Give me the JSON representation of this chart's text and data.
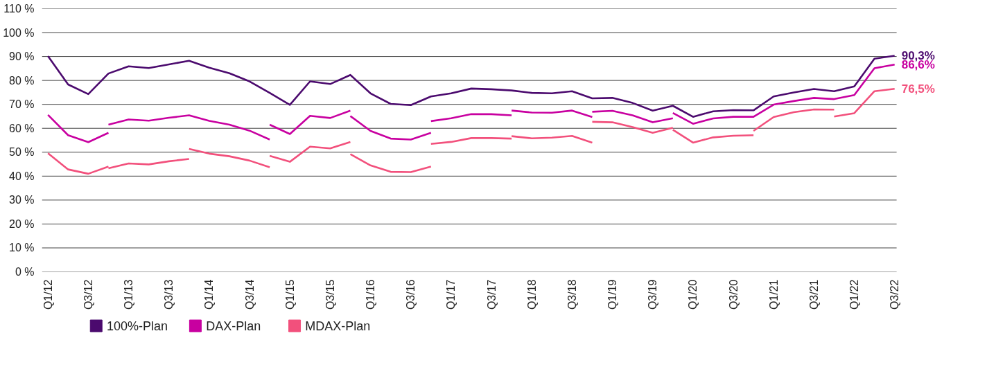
{
  "chart_data": {
    "type": "line",
    "categories": [
      "Q1/12",
      null,
      "Q3/12",
      null,
      "Q1/13",
      null,
      "Q3/13",
      null,
      "Q1/14",
      null,
      "Q3/14",
      null,
      "Q1/15",
      null,
      "Q3/15",
      null,
      "Q1/16",
      null,
      "Q3/16",
      null,
      "Q1/17",
      null,
      "Q3/17",
      null,
      "Q1/18",
      null,
      "Q3/18",
      null,
      "Q1/19",
      null,
      "Q3/19",
      null,
      "Q1/20",
      null,
      "Q3/20",
      null,
      "Q1/21",
      null,
      "Q3/21",
      null,
      "Q1/22",
      null,
      "Q3/22"
    ],
    "ylim": [
      0,
      110
    ],
    "yticks": [
      {
        "value": 0,
        "label": "0 %"
      },
      {
        "value": 10,
        "label": "10 %"
      },
      {
        "value": 20,
        "label": "20 %"
      },
      {
        "value": 30,
        "label": "30 %"
      },
      {
        "value": 40,
        "label": "40 %"
      },
      {
        "value": 50,
        "label": "50 %"
      },
      {
        "value": 60,
        "label": "60 %"
      },
      {
        "value": 70,
        "label": "70 %"
      },
      {
        "value": 80,
        "label": "80 %"
      },
      {
        "value": 90,
        "label": "90 %"
      },
      {
        "value": 100,
        "label": "100 %"
      },
      {
        "value": 110,
        "label": "110 %"
      }
    ],
    "grid": "y",
    "legend": "bottom left",
    "marker": "none",
    "line_style": "solid",
    "series": [
      {
        "name": "100%-Plan",
        "color": "#4b0a6e",
        "values": [
          90.2,
          78.3,
          74.3,
          82.9,
          85.9,
          85.2,
          86.7,
          88.2,
          85.3,
          83.0,
          79.6,
          74.8,
          69.8,
          79.6,
          78.5,
          82.3,
          74.6,
          70.2,
          69.7,
          73.3,
          74.6,
          76.6,
          76.3,
          75.8,
          74.8,
          74.6,
          75.5,
          72.5,
          72.7,
          70.6,
          67.4,
          69.4,
          64.8,
          67.1,
          67.6,
          67.5,
          73.3,
          75.0,
          76.4,
          75.5,
          77.5,
          89.1,
          90.3
        ],
        "value_labels": [
          null,
          null,
          null,
          null,
          null,
          null,
          null,
          null,
          null,
          null,
          null,
          null,
          null,
          null,
          null,
          null,
          null,
          null,
          null,
          null,
          null,
          null,
          null,
          null,
          null,
          null,
          null,
          null,
          null,
          null,
          null,
          null,
          null,
          null,
          null,
          null,
          null,
          null,
          null,
          null,
          null,
          null,
          "90,3%"
        ]
      },
      {
        "name": "DAX-Plan",
        "color": "#c800a0",
        "values": [
          65.6,
          57.1,
          54.2,
          58.1,
          null,
          null,
          null,
          null,
          null,
          null,
          null,
          null,
          null,
          null,
          null,
          null,
          null,
          null,
          null,
          null,
          null,
          null,
          null,
          null,
          null,
          null,
          null,
          null,
          null,
          null,
          null,
          null,
          null,
          null,
          null,
          null,
          null,
          null,
          null,
          null,
          null,
          null,
          null
        ]
      },
      {
        "color": "#c800a0",
        "values": [
          null,
          null,
          null,
          61.5,
          63.7,
          63.2,
          64.4,
          65.4,
          63.1,
          61.5,
          59.0,
          55.3,
          null,
          null,
          null,
          null,
          null,
          null,
          null,
          null,
          null,
          null,
          null,
          null,
          null,
          null,
          null,
          null,
          null,
          null,
          null,
          null,
          null,
          null,
          null,
          null,
          null,
          null,
          null,
          null,
          null,
          null,
          null
        ]
      },
      {
        "color": "#c800a0",
        "values": [
          null,
          null,
          null,
          null,
          null,
          null,
          null,
          null,
          null,
          null,
          null,
          61.5,
          57.6,
          65.2,
          64.3,
          67.4,
          null,
          null,
          null,
          null,
          null,
          null,
          null,
          null,
          null,
          null,
          null,
          null,
          null,
          null,
          null,
          null,
          null,
          null,
          null,
          null,
          null,
          null,
          null,
          null,
          null,
          null,
          null
        ]
      },
      {
        "color": "#c800a0",
        "values": [
          null,
          null,
          null,
          null,
          null,
          null,
          null,
          null,
          null,
          null,
          null,
          null,
          null,
          null,
          null,
          65.1,
          58.9,
          55.7,
          55.3,
          58.1,
          null,
          null,
          null,
          null,
          null,
          null,
          null,
          null,
          null,
          null,
          null,
          null,
          null,
          null,
          null,
          null,
          null,
          null,
          null,
          null,
          null,
          null,
          null
        ]
      },
      {
        "color": "#c800a0",
        "values": [
          null,
          null,
          null,
          null,
          null,
          null,
          null,
          null,
          null,
          null,
          null,
          null,
          null,
          null,
          null,
          null,
          null,
          null,
          null,
          63.0,
          64.2,
          65.9,
          65.9,
          65.4,
          null,
          null,
          null,
          null,
          null,
          null,
          null,
          null,
          null,
          null,
          null,
          null,
          null,
          null,
          null,
          null,
          null,
          null,
          null
        ]
      },
      {
        "color": "#c800a0",
        "values": [
          null,
          null,
          null,
          null,
          null,
          null,
          null,
          null,
          null,
          null,
          null,
          null,
          null,
          null,
          null,
          null,
          null,
          null,
          null,
          null,
          null,
          null,
          null,
          67.4,
          66.6,
          66.5,
          67.4,
          64.7,
          null,
          null,
          null,
          null,
          null,
          null,
          null,
          null,
          null,
          null,
          null,
          null,
          null,
          null,
          null
        ]
      },
      {
        "color": "#c800a0",
        "values": [
          null,
          null,
          null,
          null,
          null,
          null,
          null,
          null,
          null,
          null,
          null,
          null,
          null,
          null,
          null,
          null,
          null,
          null,
          null,
          null,
          null,
          null,
          null,
          null,
          null,
          null,
          null,
          66.9,
          67.3,
          65.4,
          62.5,
          64.2,
          null,
          null,
          null,
          null,
          null,
          null,
          null,
          null,
          null,
          null,
          null
        ]
      },
      {
        "color": "#c800a0",
        "values": [
          null,
          null,
          null,
          null,
          null,
          null,
          null,
          null,
          null,
          null,
          null,
          null,
          null,
          null,
          null,
          null,
          null,
          null,
          null,
          null,
          null,
          null,
          null,
          null,
          null,
          null,
          null,
          null,
          null,
          null,
          null,
          66.4,
          61.9,
          64.1,
          64.8,
          64.8,
          69.9,
          71.4,
          72.7,
          72.2,
          73.9,
          85.1,
          86.6
        ],
        "value_labels": [
          null,
          null,
          null,
          null,
          null,
          null,
          null,
          null,
          null,
          null,
          null,
          null,
          null,
          null,
          null,
          null,
          null,
          null,
          null,
          null,
          null,
          null,
          null,
          null,
          null,
          null,
          null,
          null,
          null,
          null,
          null,
          null,
          null,
          null,
          null,
          null,
          null,
          null,
          null,
          null,
          null,
          null,
          "86,6%"
        ]
      },
      {
        "name": "MDAX-Plan",
        "color": "#f2507c",
        "values": [
          49.6,
          42.8,
          41.0,
          44.0,
          null,
          null,
          null,
          null,
          null,
          null,
          null,
          null,
          null,
          null,
          null,
          null,
          null,
          null,
          null,
          null,
          null,
          null,
          null,
          null,
          null,
          null,
          null,
          null,
          null,
          null,
          null,
          null,
          null,
          null,
          null,
          null,
          null,
          null,
          null,
          null,
          null,
          null,
          null
        ]
      },
      {
        "color": "#f2507c",
        "values": [
          null,
          null,
          null,
          43.3,
          45.3,
          44.9,
          46.2,
          47.2,
          null,
          null,
          null,
          null,
          null,
          null,
          null,
          null,
          null,
          null,
          null,
          null,
          null,
          null,
          null,
          null,
          null,
          null,
          null,
          null,
          null,
          null,
          null,
          null,
          null,
          null,
          null,
          null,
          null,
          null,
          null,
          null,
          null,
          null,
          null
        ]
      },
      {
        "color": "#f2507c",
        "values": [
          null,
          null,
          null,
          null,
          null,
          null,
          null,
          51.4,
          49.4,
          48.3,
          46.5,
          43.7,
          null,
          null,
          null,
          null,
          null,
          null,
          null,
          null,
          null,
          null,
          null,
          null,
          null,
          null,
          null,
          null,
          null,
          null,
          null,
          null,
          null,
          null,
          null,
          null,
          null,
          null,
          null,
          null,
          null,
          null,
          null
        ]
      },
      {
        "color": "#f2507c",
        "values": [
          null,
          null,
          null,
          null,
          null,
          null,
          null,
          null,
          null,
          null,
          null,
          48.5,
          46.0,
          52.3,
          51.6,
          54.3,
          null,
          null,
          null,
          null,
          null,
          null,
          null,
          null,
          null,
          null,
          null,
          null,
          null,
          null,
          null,
          null,
          null,
          null,
          null,
          null,
          null,
          null,
          null,
          null,
          null,
          null,
          null
        ]
      },
      {
        "color": "#f2507c",
        "values": [
          null,
          null,
          null,
          null,
          null,
          null,
          null,
          null,
          null,
          null,
          null,
          null,
          null,
          null,
          null,
          49.2,
          44.5,
          41.8,
          41.7,
          44.0,
          null,
          null,
          null,
          null,
          null,
          null,
          null,
          null,
          null,
          null,
          null,
          null,
          null,
          null,
          null,
          null,
          null,
          null,
          null,
          null,
          null,
          null,
          null
        ]
      },
      {
        "color": "#f2507c",
        "values": [
          null,
          null,
          null,
          null,
          null,
          null,
          null,
          null,
          null,
          null,
          null,
          null,
          null,
          null,
          null,
          null,
          null,
          null,
          null,
          53.5,
          54.3,
          55.9,
          55.9,
          55.7,
          null,
          null,
          null,
          null,
          null,
          null,
          null,
          null,
          null,
          null,
          null,
          null,
          null,
          null,
          null,
          null,
          null,
          null,
          null
        ]
      },
      {
        "color": "#f2507c",
        "values": [
          null,
          null,
          null,
          null,
          null,
          null,
          null,
          null,
          null,
          null,
          null,
          null,
          null,
          null,
          null,
          null,
          null,
          null,
          null,
          null,
          null,
          null,
          null,
          56.7,
          55.8,
          56.1,
          56.8,
          54.0,
          null,
          null,
          null,
          null,
          null,
          null,
          null,
          null,
          null,
          null,
          null,
          null,
          null,
          null,
          null
        ]
      },
      {
        "color": "#f2507c",
        "values": [
          null,
          null,
          null,
          null,
          null,
          null,
          null,
          null,
          null,
          null,
          null,
          null,
          null,
          null,
          null,
          null,
          null,
          null,
          null,
          null,
          null,
          null,
          null,
          null,
          null,
          null,
          null,
          62.7,
          62.5,
          60.5,
          58.1,
          60.2,
          null,
          null,
          null,
          null,
          null,
          null,
          null,
          null,
          null,
          null,
          null
        ]
      },
      {
        "color": "#f2507c",
        "values": [
          null,
          null,
          null,
          null,
          null,
          null,
          null,
          null,
          null,
          null,
          null,
          null,
          null,
          null,
          null,
          null,
          null,
          null,
          null,
          null,
          null,
          null,
          null,
          null,
          null,
          null,
          null,
          null,
          null,
          null,
          null,
          59.4,
          54.0,
          56.2,
          56.9,
          57.1,
          null,
          null,
          null,
          null,
          null,
          null,
          null
        ]
      },
      {
        "color": "#f2507c",
        "values": [
          null,
          null,
          null,
          null,
          null,
          null,
          null,
          null,
          null,
          null,
          null,
          null,
          null,
          null,
          null,
          null,
          null,
          null,
          null,
          null,
          null,
          null,
          null,
          null,
          null,
          null,
          null,
          null,
          null,
          null,
          null,
          null,
          null,
          null,
          null,
          58.9,
          64.7,
          66.7,
          67.9,
          67.8,
          null,
          null,
          null
        ]
      },
      {
        "color": "#f2507c",
        "values": [
          null,
          null,
          null,
          null,
          null,
          null,
          null,
          null,
          null,
          null,
          null,
          null,
          null,
          null,
          null,
          null,
          null,
          null,
          null,
          null,
          null,
          null,
          null,
          null,
          null,
          null,
          null,
          null,
          null,
          null,
          null,
          null,
          null,
          null,
          null,
          null,
          null,
          null,
          null,
          64.9,
          66.3,
          75.5,
          76.5
        ],
        "value_labels": [
          null,
          null,
          null,
          null,
          null,
          null,
          null,
          null,
          null,
          null,
          null,
          null,
          null,
          null,
          null,
          null,
          null,
          null,
          null,
          null,
          null,
          null,
          null,
          null,
          null,
          null,
          null,
          null,
          null,
          null,
          null,
          null,
          null,
          null,
          null,
          null,
          null,
          null,
          null,
          null,
          null,
          null,
          "76,5%"
        ]
      }
    ]
  }
}
